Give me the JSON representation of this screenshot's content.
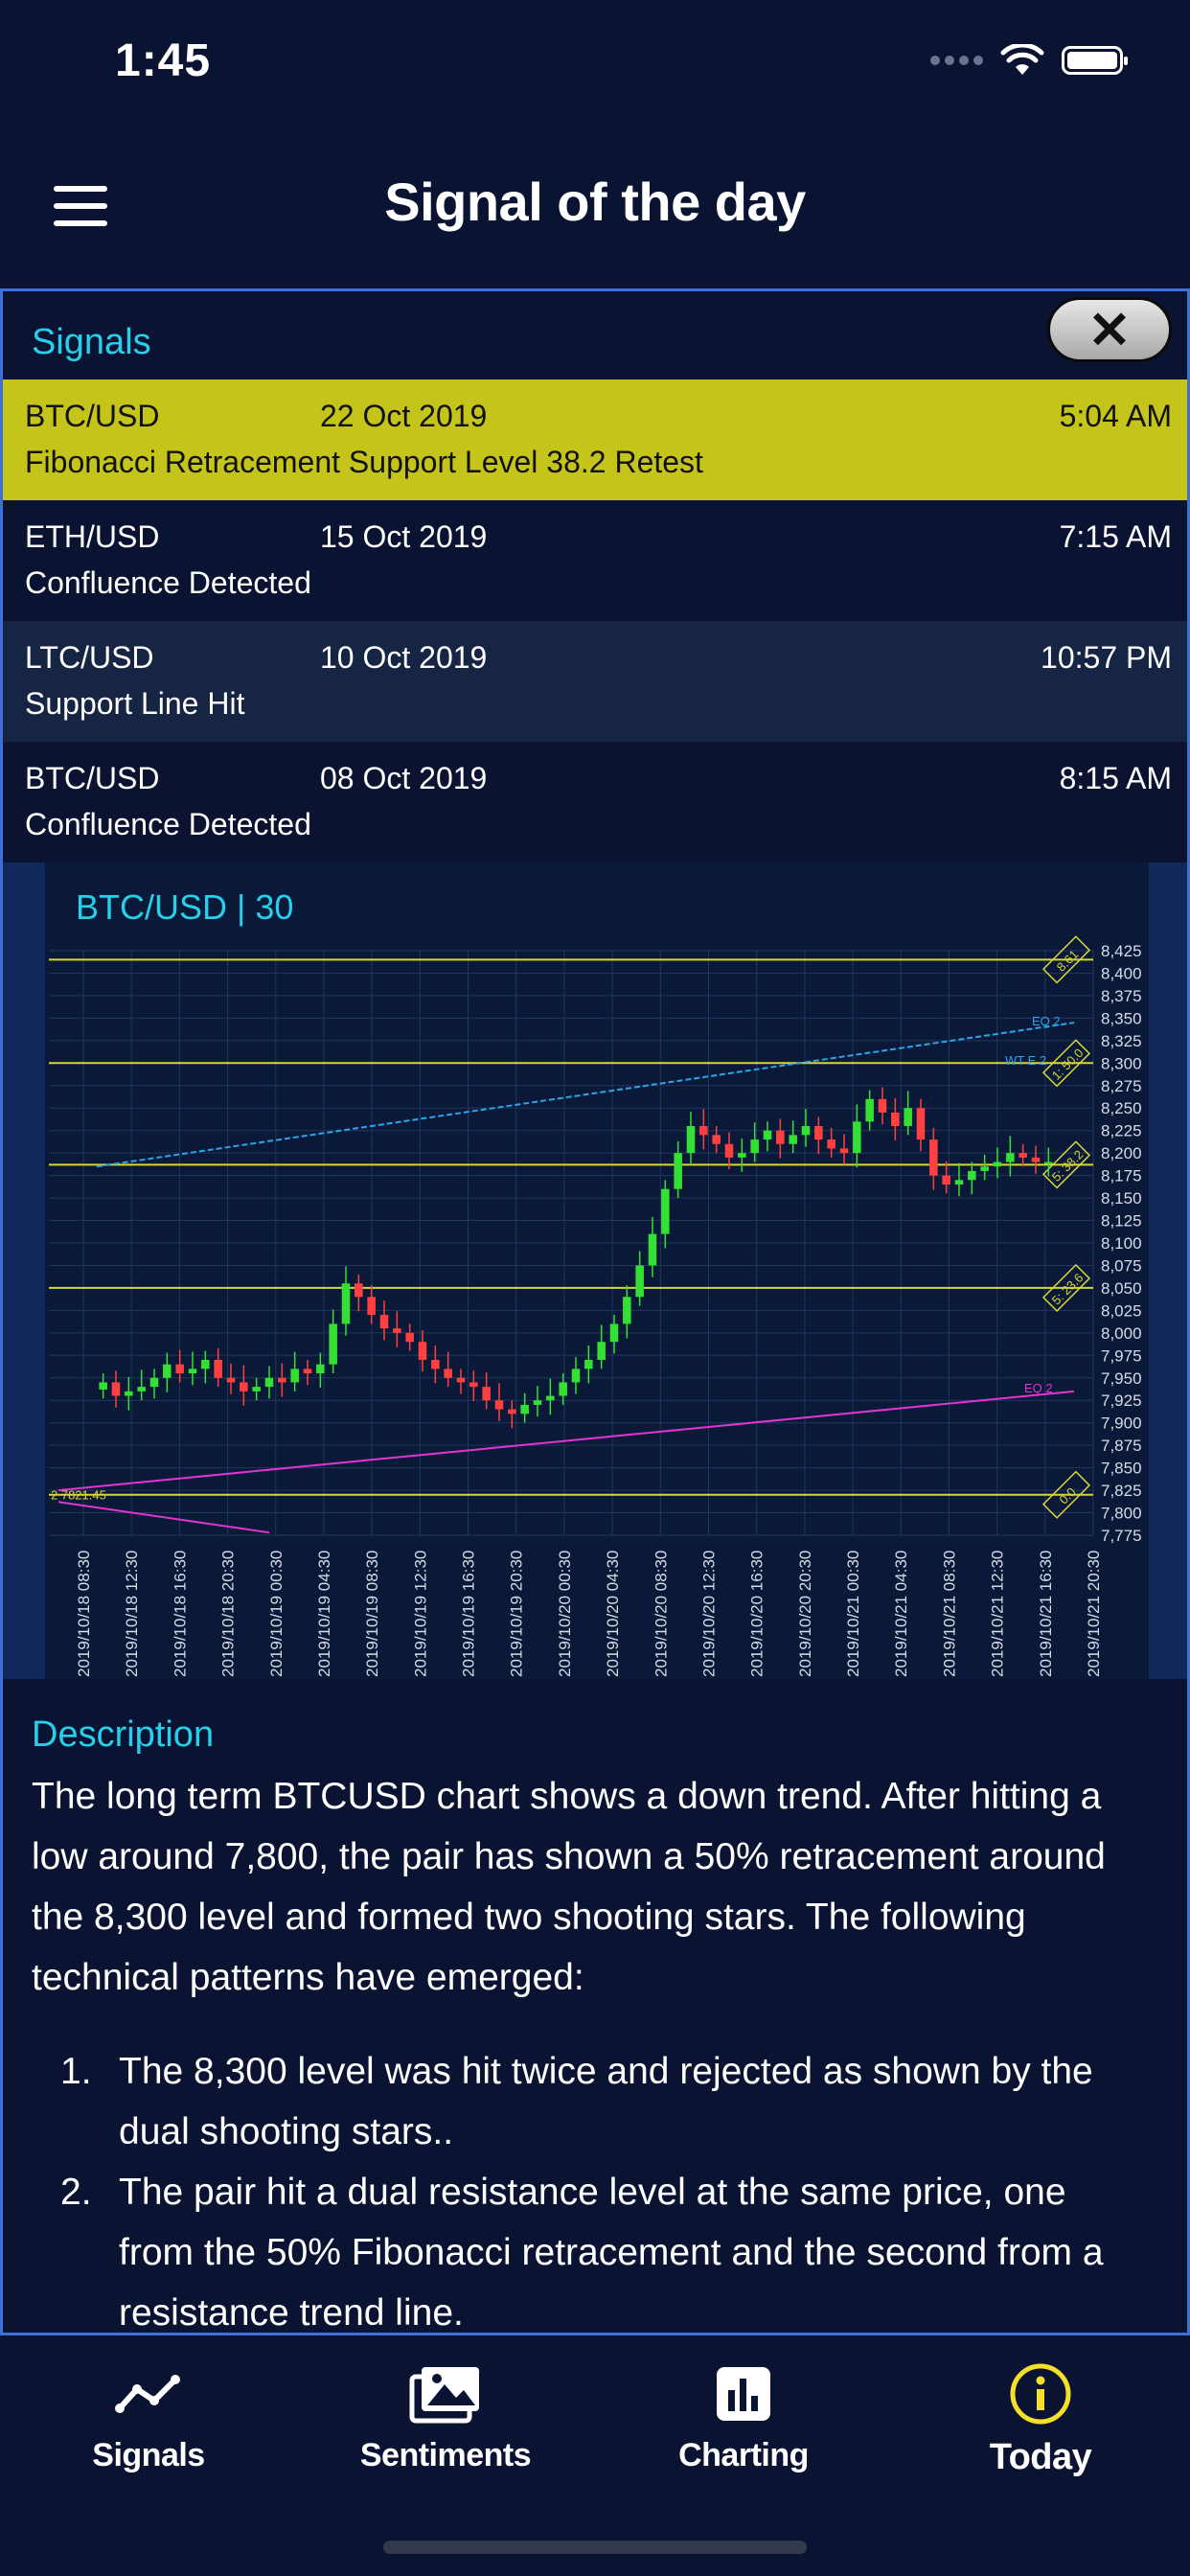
{
  "status_bar": {
    "time": "1:45"
  },
  "header": {
    "title": "Signal of the day"
  },
  "signals": {
    "title": "Signals",
    "items": [
      {
        "pair": "BTC/USD",
        "date": "22 Oct 2019",
        "time": "5:04 AM",
        "description": "Fibonacci Retracement Support Level 38.2 Retest"
      },
      {
        "pair": "ETH/USD",
        "date": "15 Oct 2019",
        "time": "7:15 AM",
        "description": "Confluence Detected"
      },
      {
        "pair": "LTC/USD",
        "date": "10 Oct 2019",
        "time": "10:57 PM",
        "description": "Support Line Hit"
      },
      {
        "pair": "BTC/USD",
        "date": "08 Oct 2019",
        "time": "8:15 AM",
        "description": "Confluence Detected"
      }
    ]
  },
  "chart": {
    "title": "BTC/USD | 30",
    "chart_data": {
      "type": "candlestick",
      "ylim": [
        7775,
        8425
      ],
      "y_ticks": [
        "8,425",
        "8,400",
        "8,375",
        "8,350",
        "8,325",
        "8,300",
        "8,275",
        "8,250",
        "8,225",
        "8,200",
        "8,175",
        "8,150",
        "8,125",
        "8,100",
        "8,075",
        "8,050",
        "8,025",
        "8,000",
        "7,975",
        "7,950",
        "7,925",
        "7,900",
        "7,875",
        "7,850",
        "7,825",
        "7,800",
        "7,775"
      ],
      "x_ticks": [
        "2019/10/18 08:30",
        "2019/10/18 12:30",
        "2019/10/18 16:30",
        "2019/10/18 20:30",
        "2019/10/19 00:30",
        "2019/10/19 04:30",
        "2019/10/19 08:30",
        "2019/10/19 12:30",
        "2019/10/19 16:30",
        "2019/10/19 20:30",
        "2019/10/20 00:30",
        "2019/10/20 04:30",
        "2019/10/20 08:30",
        "2019/10/20 12:30",
        "2019/10/20 16:30",
        "2019/10/20 20:30",
        "2019/10/21 00:30",
        "2019/10/21 04:30",
        "2019/10/21 08:30",
        "2019/10/21 12:30",
        "2019/10/21 16:30",
        "2019/10/21 20:30"
      ],
      "horizontal_levels": [
        {
          "value": 8415,
          "label": "8.61"
        },
        {
          "value": 8300,
          "label": "1: 50.0"
        },
        {
          "value": 8187,
          "label": "5: 38.2"
        },
        {
          "value": 8050,
          "label": "5: 23.6"
        },
        {
          "value": 7820,
          "label": "0.0"
        }
      ],
      "annotations": [
        "2 7821.45",
        "EQ 2",
        "WT E 2",
        "EQ 2"
      ],
      "colors": {
        "up": "#33e033",
        "down": "#ff4040",
        "fib_level": "#d6d63a",
        "resistance_trend": "#2aa6e8",
        "support_trend": "#e035d0"
      },
      "series": [
        {
          "values": [
            7945,
            7930,
            7935,
            7940,
            7950,
            7965,
            7955,
            7960,
            7970,
            7950,
            7945,
            7935,
            7940,
            7950,
            7945,
            7960,
            7955,
            7965,
            8010,
            8055,
            8040,
            8020,
            8005,
            8000,
            7990,
            7970,
            7960,
            7950,
            7945,
            7940,
            7925,
            7915,
            7910,
            7920,
            7925,
            7930,
            7945,
            7960,
            7970,
            7990,
            8010,
            8040,
            8075,
            8110,
            8160,
            8200,
            8230,
            8220,
            8210,
            8195,
            8200,
            8215,
            8225,
            8210,
            8220,
            8230,
            8215,
            8205,
            8200,
            8235,
            8260,
            8245,
            8230,
            8250,
            8215,
            8175,
            8165,
            8170,
            8180,
            8185,
            8190,
            8200,
            8195,
            8190,
            8190
          ]
        }
      ]
    }
  },
  "description": {
    "title": "Description",
    "body": "The long term BTCUSD chart shows a down trend. After hitting a low around 7,800, the pair has shown a 50% retracement around the 8,300 level and formed two shooting stars. The following technical patterns have emerged:",
    "items": [
      {
        "num": "1.",
        "text": "The 8,300 level was hit twice and rejected as shown by the dual shooting stars.."
      },
      {
        "num": "2.",
        "text": "The pair hit a dual resistance level at the same price, one from the 50% Fibonacci retracement and the second from a resistance trend line."
      }
    ]
  },
  "tabs": [
    {
      "label": "Signals",
      "icon": "trend-line-icon"
    },
    {
      "label": "Sentiments",
      "icon": "photos-icon"
    },
    {
      "label": "Charting",
      "icon": "bar-chart-icon"
    },
    {
      "label": "Today",
      "icon": "info-circle-icon",
      "active": true
    }
  ],
  "theme": {
    "accent": "#27d0ea",
    "highlight_row": "#c4c41b",
    "active_tab": "#f4e02c",
    "border": "#3e6fd6"
  }
}
